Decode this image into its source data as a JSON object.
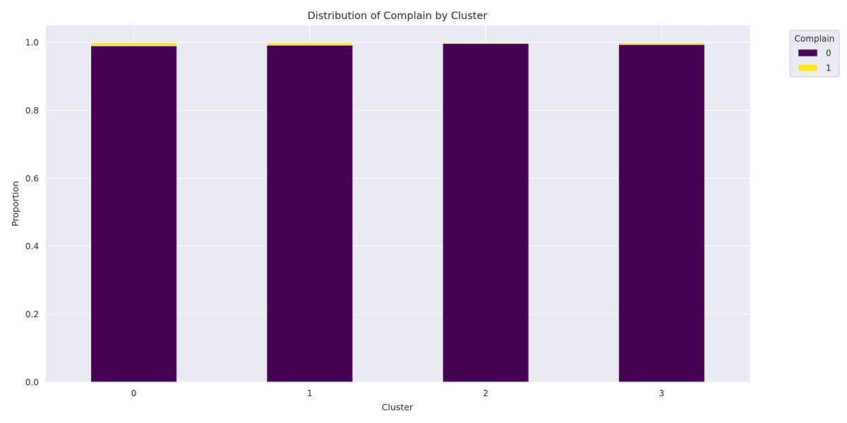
{
  "chart_data": {
    "type": "bar",
    "stacked": true,
    "title": "Distribution of Complain by Cluster",
    "xlabel": "Cluster",
    "ylabel": "Proportion",
    "categories": [
      "0",
      "1",
      "2",
      "3"
    ],
    "series": [
      {
        "name": "0",
        "color": "#440154",
        "values": [
          0.99,
          0.992,
          0.997,
          0.994
        ]
      },
      {
        "name": "1",
        "color": "#fde725",
        "values": [
          0.01,
          0.008,
          0.003,
          0.006
        ]
      }
    ],
    "ylim": [
      0,
      1.05
    ],
    "yticks": [
      0.0,
      0.2,
      0.4,
      0.6,
      0.8,
      1.0
    ],
    "ytick_labels": [
      "0.0",
      "0.2",
      "0.4",
      "0.6",
      "0.8",
      "1.0"
    ],
    "grid": true,
    "legend": {
      "title": "Complain",
      "placement": "outside-top-right"
    },
    "background": "#eaeaf2"
  }
}
